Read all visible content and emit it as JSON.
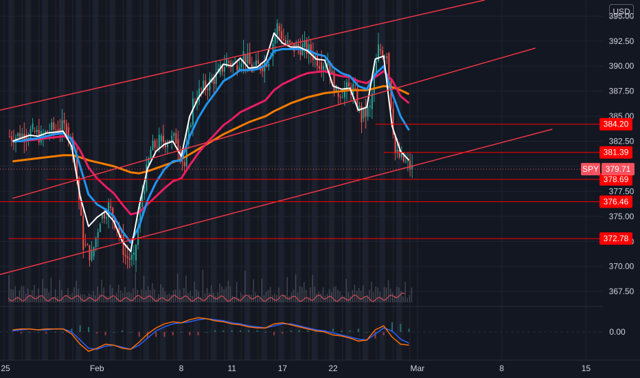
{
  "currency_button": "USD",
  "chart_data": {
    "type": "candlestick",
    "symbol": "SPY",
    "currency": "USD",
    "price_axis": {
      "min": 366.0,
      "max": 396.6,
      "ticks": [
        "395.00",
        "392.50",
        "390.00",
        "387.50",
        "385.00",
        "382.50",
        "380.00",
        "377.50",
        "375.00",
        "372.50",
        "370.00",
        "367.50"
      ]
    },
    "time_axis": {
      "labels": [
        "25",
        "Feb",
        "8",
        "11",
        "17",
        "22",
        "Mar",
        "8",
        "15"
      ],
      "label_index": [
        -1,
        10,
        20,
        26,
        32,
        38,
        48,
        58,
        68
      ],
      "bars_visible": 48,
      "index_min": -1.5,
      "index_max": 70
    },
    "oscillator": {
      "ticks": [
        "0.00"
      ],
      "range": [
        -2.5,
        2.5
      ]
    },
    "close_series": [
      383.0,
      383.2,
      383.5,
      382.9,
      383.6,
      383.8,
      383.9,
      381.2,
      372.2,
      371.0,
      374.8,
      376.0,
      374.0,
      371.0,
      370.6,
      377.2,
      381.6,
      382.5,
      382.6,
      382.7,
      380.0,
      386.4,
      387.6,
      388.4,
      389.2,
      390.5,
      390.1,
      391.2,
      389.7,
      390.0,
      390.8,
      394.0,
      392.2,
      391.8,
      391.9,
      391.4,
      390.4,
      390.5,
      387.3,
      387.6,
      387.8,
      384.8,
      385.7,
      391.7,
      391.3,
      381.3,
      380.5,
      379.71
    ],
    "ema_fast": [
      382.5,
      382.8,
      383.1,
      383.0,
      383.3,
      383.4,
      383.5,
      382.0,
      377.0,
      374.0,
      374.9,
      375.5,
      374.5,
      372.5,
      371.5,
      376.0,
      379.8,
      381.5,
      382.2,
      382.5,
      381.0,
      385.0,
      386.8,
      388.0,
      389.0,
      390.2,
      390.0,
      390.8,
      389.8,
      389.9,
      390.6,
      393.3,
      392.3,
      391.9,
      391.9,
      391.5,
      390.7,
      390.6,
      388.0,
      387.7,
      387.8,
      385.6,
      385.9,
      390.7,
      391.0,
      384.0,
      381.5,
      380.6
    ],
    "ema_mid": [
      382.5,
      382.5,
      382.7,
      382.8,
      383.0,
      383.2,
      383.3,
      382.7,
      380.0,
      377.2,
      376.2,
      375.7,
      375.0,
      373.5,
      372.4,
      374.0,
      376.6,
      378.4,
      379.7,
      380.5,
      380.6,
      383.0,
      384.8,
      386.2,
      387.3,
      388.5,
      389.0,
      389.6,
      389.6,
      389.7,
      390.1,
      391.5,
      391.7,
      391.7,
      391.7,
      391.6,
      391.2,
      391.0,
      389.9,
      389.3,
      389.0,
      388.0,
      387.7,
      389.2,
      390.0,
      387.3,
      385.0,
      383.6
    ],
    "ema_slow": [
      382.5,
      382.5,
      382.6,
      382.7,
      382.8,
      382.9,
      383.0,
      382.8,
      381.6,
      379.9,
      378.8,
      378.0,
      377.3,
      376.2,
      375.2,
      375.4,
      376.2,
      377.0,
      377.8,
      378.5,
      378.8,
      380.1,
      381.3,
      382.3,
      383.2,
      384.1,
      384.7,
      385.4,
      385.8,
      386.2,
      386.6,
      387.6,
      388.2,
      388.6,
      389.0,
      389.3,
      389.4,
      389.5,
      389.2,
      389.0,
      388.9,
      388.5,
      388.3,
      388.9,
      389.5,
      388.6,
      387.0,
      386.3
    ],
    "ema_trend": [
      380.5,
      380.6,
      380.7,
      380.8,
      380.9,
      381.0,
      381.1,
      381.1,
      380.9,
      380.6,
      380.4,
      380.2,
      380.0,
      379.7,
      379.4,
      379.3,
      379.5,
      379.8,
      380.1,
      380.4,
      380.7,
      381.2,
      381.7,
      382.2,
      382.7,
      383.2,
      383.6,
      384.0,
      384.4,
      384.7,
      385.0,
      385.5,
      385.9,
      386.3,
      386.6,
      386.9,
      387.1,
      387.3,
      387.4,
      387.5,
      387.6,
      387.6,
      387.6,
      387.8,
      388.0,
      387.9,
      387.6,
      387.2
    ],
    "osc_signal": [
      0.2,
      0.3,
      0.3,
      0.2,
      0.3,
      0.3,
      0.3,
      -0.2,
      -1.2,
      -1.9,
      -1.6,
      -1.2,
      -1.3,
      -1.6,
      -1.7,
      -1.0,
      -0.2,
      0.4,
      0.8,
      1.0,
      0.9,
      1.2,
      1.4,
      1.3,
      1.1,
      1.0,
      0.8,
      0.7,
      0.5,
      0.4,
      0.4,
      0.8,
      0.9,
      0.7,
      0.5,
      0.3,
      0.1,
      0.0,
      -0.3,
      -0.4,
      -0.6,
      -0.9,
      -0.8,
      0.2,
      0.6,
      -0.5,
      -1.2,
      -1.3
    ],
    "osc_macd": [
      0.1,
      0.2,
      0.3,
      0.2,
      0.2,
      0.3,
      0.3,
      0.0,
      -0.8,
      -1.6,
      -1.7,
      -1.4,
      -1.3,
      -1.5,
      -1.7,
      -1.3,
      -0.6,
      0.1,
      0.5,
      0.8,
      0.9,
      1.0,
      1.2,
      1.3,
      1.2,
      1.1,
      0.9,
      0.8,
      0.6,
      0.5,
      0.4,
      0.6,
      0.8,
      0.8,
      0.6,
      0.4,
      0.2,
      0.1,
      -0.1,
      -0.3,
      -0.5,
      -0.7,
      -0.8,
      -0.2,
      0.4,
      0.1,
      -0.7,
      -1.1
    ],
    "horizontal_levels": [
      {
        "price": 384.2,
        "label": "384.20",
        "start_index": 43
      },
      {
        "price": 381.39,
        "label": "381.39",
        "start_index": 44
      },
      {
        "price": 378.69,
        "label": "378.69",
        "start_index": 4
      },
      {
        "price": 376.46,
        "label": "376.46",
        "start_index": -1.5
      },
      {
        "price": 372.78,
        "label": "372.78",
        "start_index": -0.5
      }
    ],
    "last_price": {
      "label": "SPY",
      "value": "379.71"
    },
    "trend_lines": [
      {
        "i1": -1.5,
        "p1": 385.6,
        "i2": 56,
        "p2": 396.6
      },
      {
        "i1": 0,
        "p1": 376.8,
        "i2": 62,
        "p2": 391.8
      },
      {
        "i1": -1.5,
        "p1": 369.2,
        "i2": 64,
        "p2": 383.7
      }
    ],
    "colors": {
      "background": "#131722",
      "up": "#26a69a",
      "down": "#ef5350",
      "ema_fast": "#ffffff",
      "ema_mid": "#2196f3",
      "ema_slow": "#e91e63",
      "ema_trend": "#f57c00",
      "trend_line": "#f23645",
      "level": "#ff0000",
      "osc_macd": "#2962ff",
      "osc_signal": "#ff6d00",
      "volume": "#787b86"
    }
  }
}
